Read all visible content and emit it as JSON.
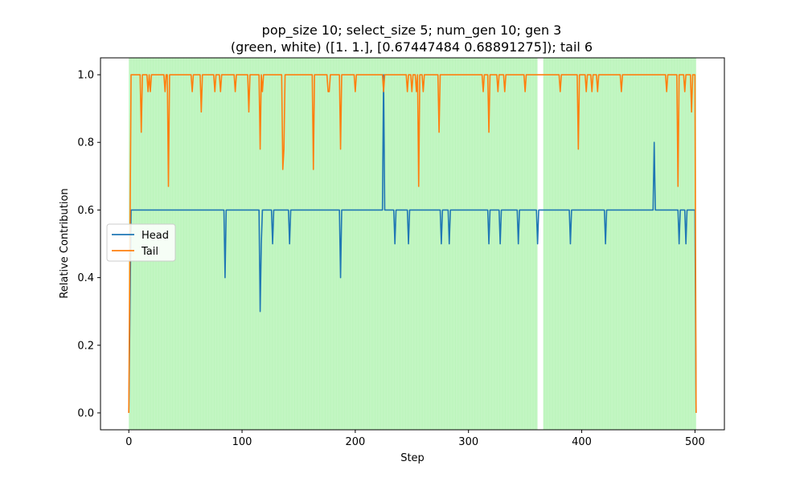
{
  "chart_data": {
    "type": "line",
    "title": "pop_size 10; select_size 5; num_gen 10; gen 3",
    "subtitle": "(green, white) ([1. 1.], [0.67447484 0.68891275]); tail 6",
    "xlabel": "Step",
    "ylabel": "Relative Contribution",
    "xlim": [
      -25,
      526
    ],
    "ylim": [
      -0.05,
      1.05
    ],
    "x_ticks": [
      0,
      100,
      200,
      300,
      400,
      500
    ],
    "y_ticks": [
      0.0,
      0.2,
      0.4,
      0.6,
      0.8,
      1.0
    ],
    "legend": {
      "position": "center-left",
      "entries": [
        "Head",
        "Tail"
      ]
    },
    "background_bands": [
      {
        "x_start": 0,
        "x_end": 361,
        "color": "#90ee90"
      },
      {
        "x_start": 361,
        "x_end": 366,
        "color": "#ffffff"
      },
      {
        "x_start": 366,
        "x_end": 501,
        "color": "#90ee90"
      }
    ],
    "series": [
      {
        "name": "Head",
        "color": "#1f77b4",
        "points": [
          [
            0,
            0.0
          ],
          [
            2,
            0.6
          ],
          [
            84,
            0.6
          ],
          [
            85,
            0.4
          ],
          [
            86,
            0.6
          ],
          [
            115,
            0.6
          ],
          [
            116,
            0.3
          ],
          [
            117,
            0.5
          ],
          [
            118,
            0.6
          ],
          [
            126,
            0.6
          ],
          [
            127,
            0.5
          ],
          [
            128,
            0.6
          ],
          [
            141,
            0.6
          ],
          [
            142,
            0.5
          ],
          [
            143,
            0.6
          ],
          [
            186,
            0.6
          ],
          [
            187,
            0.4
          ],
          [
            188,
            0.6
          ],
          [
            224,
            0.6
          ],
          [
            225,
            1.0
          ],
          [
            226,
            0.6
          ],
          [
            234,
            0.6
          ],
          [
            235,
            0.5
          ],
          [
            236,
            0.6
          ],
          [
            246,
            0.6
          ],
          [
            247,
            0.5
          ],
          [
            248,
            0.6
          ],
          [
            275,
            0.6
          ],
          [
            276,
            0.5
          ],
          [
            277,
            0.6
          ],
          [
            282,
            0.6
          ],
          [
            283,
            0.5
          ],
          [
            284,
            0.6
          ],
          [
            317,
            0.6
          ],
          [
            318,
            0.5
          ],
          [
            319,
            0.6
          ],
          [
            327,
            0.6
          ],
          [
            328,
            0.5
          ],
          [
            329,
            0.6
          ],
          [
            343,
            0.6
          ],
          [
            344,
            0.5
          ],
          [
            345,
            0.6
          ],
          [
            360,
            0.6
          ],
          [
            361,
            0.5
          ],
          [
            362,
            0.6
          ],
          [
            389,
            0.6
          ],
          [
            390,
            0.5
          ],
          [
            391,
            0.6
          ],
          [
            420,
            0.6
          ],
          [
            421,
            0.5
          ],
          [
            422,
            0.6
          ],
          [
            463,
            0.6
          ],
          [
            464,
            0.8
          ],
          [
            465,
            0.6
          ],
          [
            485,
            0.6
          ],
          [
            486,
            0.5
          ],
          [
            487,
            0.6
          ],
          [
            491,
            0.6
          ],
          [
            492,
            0.5
          ],
          [
            493,
            0.6
          ],
          [
            500,
            0.6
          ],
          [
            501,
            0.0
          ]
        ]
      },
      {
        "name": "Tail",
        "color": "#ff7f0e",
        "points": [
          [
            0,
            0.0
          ],
          [
            2,
            1.0
          ],
          [
            10,
            1.0
          ],
          [
            11,
            0.83
          ],
          [
            12,
            1.0
          ],
          [
            16,
            1.0
          ],
          [
            17,
            0.95
          ],
          [
            18,
            1.0
          ],
          [
            19,
            0.95
          ],
          [
            20,
            1.0
          ],
          [
            31,
            1.0
          ],
          [
            32,
            0.95
          ],
          [
            33,
            1.0
          ],
          [
            34,
            1.0
          ],
          [
            35,
            0.67
          ],
          [
            36,
            1.0
          ],
          [
            55,
            1.0
          ],
          [
            56,
            0.95
          ],
          [
            57,
            1.0
          ],
          [
            63,
            1.0
          ],
          [
            64,
            0.89
          ],
          [
            65,
            1.0
          ],
          [
            75,
            1.0
          ],
          [
            76,
            0.95
          ],
          [
            77,
            1.0
          ],
          [
            80,
            1.0
          ],
          [
            81,
            0.95
          ],
          [
            82,
            1.0
          ],
          [
            93,
            1.0
          ],
          [
            94,
            0.95
          ],
          [
            95,
            1.0
          ],
          [
            105,
            1.0
          ],
          [
            106,
            0.89
          ],
          [
            107,
            1.0
          ],
          [
            115,
            1.0
          ],
          [
            116,
            0.78
          ],
          [
            117,
            1.0
          ],
          [
            118,
            0.95
          ],
          [
            119,
            1.0
          ],
          [
            135,
            1.0
          ],
          [
            136,
            0.72
          ],
          [
            137,
            0.78
          ],
          [
            138,
            1.0
          ],
          [
            162,
            1.0
          ],
          [
            163,
            0.72
          ],
          [
            164,
            1.0
          ],
          [
            175,
            1.0
          ],
          [
            176,
            0.95
          ],
          [
            177,
            0.95
          ],
          [
            178,
            1.0
          ],
          [
            186,
            1.0
          ],
          [
            187,
            0.78
          ],
          [
            188,
            1.0
          ],
          [
            199,
            1.0
          ],
          [
            200,
            0.95
          ],
          [
            201,
            1.0
          ],
          [
            224,
            1.0
          ],
          [
            225,
            0.95
          ],
          [
            226,
            1.0
          ],
          [
            245,
            1.0
          ],
          [
            246,
            0.95
          ],
          [
            247,
            1.0
          ],
          [
            249,
            1.0
          ],
          [
            250,
            0.95
          ],
          [
            251,
            1.0
          ],
          [
            253,
            1.0
          ],
          [
            254,
            0.95
          ],
          [
            255,
            1.0
          ],
          [
            256,
            0.67
          ],
          [
            257,
            1.0
          ],
          [
            259,
            1.0
          ],
          [
            260,
            0.95
          ],
          [
            261,
            1.0
          ],
          [
            273,
            1.0
          ],
          [
            274,
            0.83
          ],
          [
            275,
            1.0
          ],
          [
            312,
            1.0
          ],
          [
            313,
            0.95
          ],
          [
            314,
            1.0
          ],
          [
            317,
            1.0
          ],
          [
            318,
            0.83
          ],
          [
            319,
            1.0
          ],
          [
            325,
            1.0
          ],
          [
            326,
            0.95
          ],
          [
            327,
            1.0
          ],
          [
            331,
            1.0
          ],
          [
            332,
            0.95
          ],
          [
            333,
            1.0
          ],
          [
            349,
            1.0
          ],
          [
            350,
            0.95
          ],
          [
            351,
            1.0
          ],
          [
            380,
            1.0
          ],
          [
            381,
            0.95
          ],
          [
            382,
            1.0
          ],
          [
            396,
            1.0
          ],
          [
            397,
            0.78
          ],
          [
            398,
            1.0
          ],
          [
            403,
            1.0
          ],
          [
            404,
            0.95
          ],
          [
            405,
            1.0
          ],
          [
            408,
            1.0
          ],
          [
            409,
            0.95
          ],
          [
            410,
            1.0
          ],
          [
            413,
            1.0
          ],
          [
            414,
            0.95
          ],
          [
            415,
            1.0
          ],
          [
            434,
            1.0
          ],
          [
            435,
            0.95
          ],
          [
            436,
            1.0
          ],
          [
            474,
            1.0
          ],
          [
            475,
            0.95
          ],
          [
            476,
            1.0
          ],
          [
            484,
            1.0
          ],
          [
            485,
            0.67
          ],
          [
            486,
            1.0
          ],
          [
            490,
            1.0
          ],
          [
            491,
            0.95
          ],
          [
            492,
            1.0
          ],
          [
            496,
            1.0
          ],
          [
            497,
            0.89
          ],
          [
            498,
            1.0
          ],
          [
            500,
            1.0
          ],
          [
            501,
            0.0
          ]
        ]
      }
    ]
  }
}
